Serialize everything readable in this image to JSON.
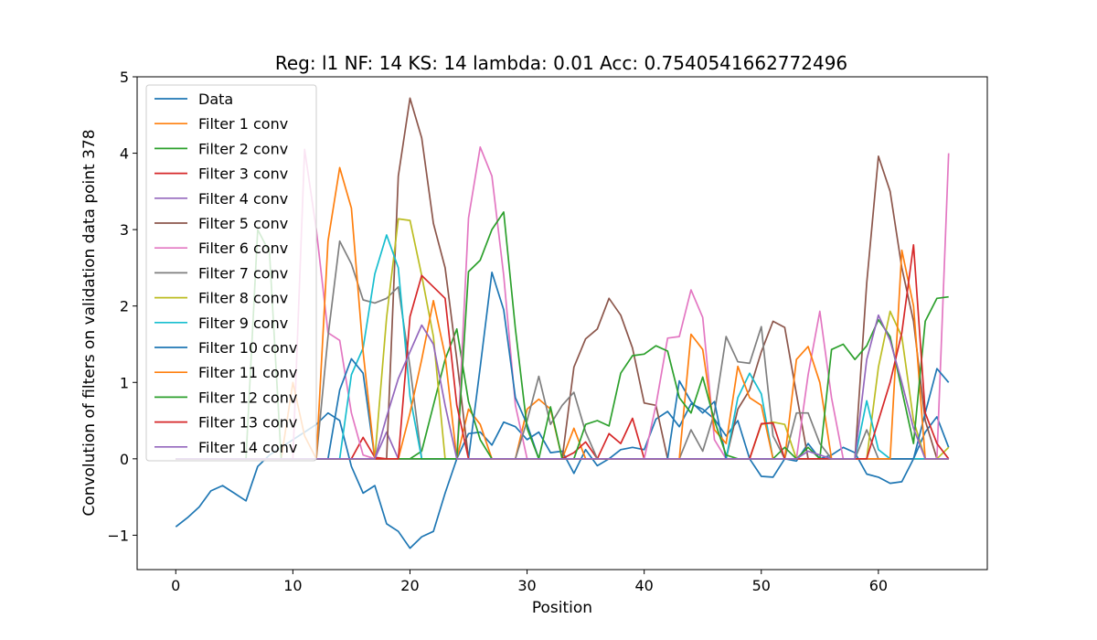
{
  "chart_data": {
    "type": "line",
    "title": "Reg: l1  NF: 14  KS: 14  lambda: 0.01 Acc: 0.7540541662772496",
    "xlabel": "Position",
    "ylabel": "Convolution of filters on validation data point 378",
    "xlim": [
      -3.3,
      69.3
    ],
    "ylim": [
      -1.45,
      5
    ],
    "xticks": [
      0,
      10,
      20,
      30,
      40,
      50,
      60
    ],
    "yticks": [
      -1,
      0,
      1,
      2,
      3,
      4,
      5
    ],
    "grid": false,
    "legend_position": "top-left",
    "series": [
      {
        "name": "Data",
        "color": "#1f77b4",
        "values": [
          -0.89,
          -0.77,
          -0.63,
          -0.42,
          -0.35,
          -0.45,
          -0.55,
          -0.1,
          0.05,
          0.15,
          0.25,
          0.35,
          0.45,
          0.6,
          0.5,
          -0.1,
          -0.45,
          -0.35,
          -0.85,
          -0.95,
          -1.17,
          -1.02,
          -0.95,
          -0.45,
          0.0,
          0.33,
          0.35,
          0.18,
          0.48,
          0.42,
          0.25,
          0.35,
          0.08,
          0.1,
          -0.19,
          0.12,
          -0.09,
          0.0,
          0.12,
          0.15,
          0.12,
          0.52,
          0.62,
          0.42,
          0.72,
          0.65,
          0.52,
          0.3,
          0.5,
          0.0,
          -0.23,
          -0.24,
          0.0,
          -0.03,
          0.2,
          0.0,
          0.05,
          0.15,
          0.08,
          -0.2,
          -0.24,
          -0.32,
          -0.3,
          0.0,
          0.35,
          0.55,
          0.15
        ]
      },
      {
        "name": "Filter 1 conv",
        "color": "#ff7f0e",
        "values": [
          0,
          0,
          0,
          0,
          0,
          0,
          0,
          0,
          0,
          0,
          0,
          0,
          0,
          0,
          0,
          0,
          0,
          0,
          0,
          0,
          0,
          0,
          0,
          0,
          0,
          0.65,
          0.45,
          0,
          0,
          0,
          0.65,
          0.78,
          0.65,
          0,
          0.4,
          0,
          0,
          0,
          0,
          0,
          0,
          0,
          0,
          0,
          0,
          0,
          0,
          0,
          0,
          0,
          0,
          0,
          0,
          0,
          0,
          0,
          0,
          0,
          0,
          0,
          0,
          0,
          0,
          0,
          0,
          0,
          0
        ]
      },
      {
        "name": "Filter 2 conv",
        "color": "#2ca02c",
        "values": [
          0,
          0,
          0,
          0,
          0,
          0,
          0,
          0,
          0,
          0,
          0,
          0,
          0,
          0,
          0,
          0,
          0,
          0,
          0,
          0,
          0,
          0.1,
          0.7,
          1.3,
          1.7,
          0.75,
          0.25,
          0,
          0,
          0,
          0,
          0,
          0,
          0,
          0,
          0,
          0,
          0,
          0,
          0,
          0,
          0,
          0,
          0,
          0,
          0,
          0,
          0,
          0,
          0,
          0,
          0,
          0,
          0,
          0,
          0,
          0,
          0,
          0,
          0,
          0,
          0,
          0,
          0,
          0,
          0,
          0
        ]
      },
      {
        "name": "Filter 3 conv",
        "color": "#d62728",
        "values": [
          0,
          0,
          0,
          0,
          0,
          0,
          0,
          0,
          0,
          0,
          0,
          0,
          0,
          0,
          0,
          0,
          0.28,
          0.02,
          0,
          0,
          0,
          0,
          0,
          0,
          0,
          0,
          0,
          0,
          0,
          0,
          0,
          0,
          0,
          0,
          0.08,
          0.22,
          0,
          0.33,
          0.2,
          0.53,
          0,
          0,
          0,
          0,
          0,
          0,
          0,
          0,
          0,
          0,
          0,
          0,
          0,
          0,
          0,
          0,
          0,
          0,
          0,
          0,
          0,
          0,
          0,
          0,
          0,
          0,
          0
        ]
      },
      {
        "name": "Filter 4 conv",
        "color": "#9467bd",
        "values": [
          0,
          0,
          0,
          0,
          0,
          0,
          0,
          0,
          0,
          0,
          0,
          0,
          0,
          0,
          0,
          0,
          0,
          0,
          0.35,
          0,
          0,
          0,
          0,
          0,
          0,
          0,
          0,
          0,
          0,
          0,
          0,
          0,
          0,
          0,
          0,
          0,
          0,
          0,
          0,
          0,
          0,
          0,
          0,
          0,
          0,
          0,
          0,
          0,
          0,
          0,
          0,
          0,
          0,
          0,
          0,
          0,
          0,
          0,
          0,
          0,
          0,
          0,
          0,
          0,
          0,
          0,
          0
        ]
      },
      {
        "name": "Filter 5 conv",
        "color": "#8c564b",
        "values": [
          0,
          0,
          0,
          0,
          0,
          0,
          0,
          0,
          0,
          0,
          0,
          0,
          0,
          0,
          0,
          0,
          0,
          0,
          0,
          3.7,
          4.72,
          4.2,
          3.08,
          2.5,
          1.3,
          0,
          0,
          0,
          0,
          0,
          0,
          0,
          0,
          0,
          1.2,
          1.57,
          1.7,
          2.1,
          1.88,
          1.45,
          0.73,
          0.7,
          0,
          0,
          0,
          0,
          0,
          0,
          0.65,
          0.9,
          1.4,
          1.8,
          1.72,
          0.85,
          0,
          0,
          0,
          0,
          0,
          2.3,
          3.96,
          3.5,
          2.5,
          1.8,
          0.5,
          0,
          0
        ]
      },
      {
        "name": "Filter 6 conv",
        "color": "#e377c2",
        "values": [
          0,
          0,
          0,
          0,
          0,
          0,
          0,
          0,
          0,
          0,
          0,
          4.05,
          3.0,
          1.65,
          1.55,
          0.6,
          0.05,
          0,
          0,
          0,
          0,
          0,
          0,
          0,
          0,
          3.15,
          4.08,
          3.7,
          2.4,
          0.7,
          0,
          0,
          0,
          0,
          0,
          0,
          0,
          0,
          0,
          0,
          0,
          0.7,
          1.58,
          1.6,
          2.21,
          1.85,
          0.25,
          0,
          0,
          0,
          0,
          0,
          0,
          0,
          1.1,
          1.93,
          0.8,
          0,
          0,
          0,
          0,
          0,
          0,
          0,
          0,
          0,
          4.0
        ]
      },
      {
        "name": "Filter 7 conv",
        "color": "#7f7f7f",
        "values": [
          0,
          0,
          0,
          0,
          0,
          0,
          0,
          0,
          0,
          0,
          0,
          0,
          0,
          1.6,
          2.85,
          2.55,
          2.08,
          2.04,
          2.1,
          2.25,
          1.2,
          0,
          0,
          0,
          0,
          0,
          0,
          0,
          0,
          0,
          0.5,
          1.08,
          0.45,
          0.7,
          0.87,
          0.35,
          0,
          0,
          0,
          0,
          0,
          0,
          0,
          0,
          0.38,
          0.1,
          0.6,
          1.6,
          1.27,
          1.25,
          1.73,
          0.3,
          0,
          0.6,
          0.6,
          0.2,
          0,
          0,
          0,
          0.38,
          0,
          0,
          0,
          0,
          0,
          0,
          0
        ]
      },
      {
        "name": "Filter 8 conv",
        "color": "#bcbd22",
        "values": [
          0,
          0,
          0,
          0,
          0,
          0,
          0,
          0,
          0,
          0,
          0,
          0,
          0,
          0,
          0,
          0,
          0,
          0,
          1.85,
          3.14,
          3.12,
          2.4,
          1.6,
          0,
          0,
          0,
          0,
          0,
          0,
          0,
          0,
          0,
          0,
          0,
          0,
          0,
          0,
          0,
          0,
          0,
          0,
          0,
          0,
          0,
          0,
          0,
          0,
          0,
          0,
          0,
          0.45,
          0.48,
          0.45,
          0,
          0,
          0,
          0,
          0,
          0,
          0,
          1.2,
          1.93,
          1.6,
          0.5,
          0,
          0,
          0.15
        ]
      },
      {
        "name": "Filter 9 conv",
        "color": "#17becf",
        "values": [
          0,
          0,
          0,
          0,
          0,
          0,
          0,
          0,
          0,
          0,
          0,
          0,
          0,
          0,
          0,
          1.1,
          1.45,
          2.42,
          2.93,
          2.5,
          0.82,
          0,
          0,
          0,
          0,
          0,
          0,
          0,
          0,
          0,
          0,
          0,
          0,
          0,
          0,
          0,
          0,
          0,
          0,
          0,
          0,
          0,
          0,
          0,
          0,
          0,
          0,
          0,
          0.8,
          1.12,
          0.85,
          0,
          0,
          0,
          0,
          0,
          0,
          0,
          0,
          0.76,
          0.12,
          0,
          0,
          0,
          0,
          0,
          0
        ]
      },
      {
        "name": "Filter 10 conv",
        "color": "#1f77b4",
        "values": [
          0,
          0,
          0,
          0,
          0,
          0,
          0,
          0,
          0,
          0,
          0,
          0,
          0,
          0,
          0.9,
          1.31,
          1.12,
          0,
          0,
          0,
          0,
          0,
          0,
          0,
          0,
          0,
          1.2,
          2.44,
          1.95,
          0.8,
          0.45,
          0,
          0,
          0,
          0,
          0,
          0,
          0,
          0,
          0,
          0,
          0,
          0,
          1.02,
          0.75,
          0.6,
          0.75,
          0,
          0,
          0,
          0,
          0,
          0,
          0,
          0,
          0,
          0,
          0,
          0,
          0,
          0,
          0,
          0,
          0,
          0.6,
          1.18,
          1.0
        ]
      },
      {
        "name": "Filter 11 conv",
        "color": "#ff7f0e",
        "values": [
          0,
          0,
          0,
          0,
          0,
          0,
          0,
          0,
          0,
          0,
          1.0,
          0.3,
          0,
          2.85,
          3.81,
          3.28,
          1.4,
          0,
          0,
          0,
          0.6,
          1.3,
          2.07,
          1.35,
          0,
          0,
          0,
          0,
          0,
          0,
          0,
          0,
          0,
          0,
          0,
          0,
          0,
          0,
          0,
          0,
          0,
          0,
          0,
          0,
          1.63,
          1.43,
          0.38,
          0.2,
          1.21,
          0.8,
          0.7,
          0,
          0,
          1.3,
          1.47,
          1.0,
          0,
          0,
          0,
          0,
          0,
          0,
          2.73,
          2.0,
          0,
          0,
          0
        ]
      },
      {
        "name": "Filter 12 conv",
        "color": "#2ca02c",
        "values": [
          0,
          0,
          0,
          0,
          0,
          0,
          0,
          3.0,
          2.7,
          0,
          0,
          0,
          0,
          0,
          0,
          0,
          0,
          0,
          0,
          0,
          0,
          0,
          0,
          0,
          0,
          2.45,
          2.6,
          3.0,
          3.23,
          1.7,
          0.4,
          0,
          0.68,
          0,
          0,
          0.45,
          0.5,
          0.43,
          1.12,
          1.35,
          1.37,
          1.48,
          1.41,
          0.8,
          0.6,
          1.07,
          0.5,
          0.05,
          0,
          0,
          0,
          0,
          0.15,
          0,
          0.15,
          0,
          1.43,
          1.5,
          1.3,
          1.48,
          1.82,
          1.6,
          0.9,
          0.2,
          1.8,
          2.1,
          2.12
        ]
      },
      {
        "name": "Filter 13 conv",
        "color": "#d62728",
        "values": [
          0,
          0,
          0,
          0,
          0,
          0,
          0,
          0,
          0,
          0,
          0,
          0,
          0,
          0,
          0,
          0,
          0,
          0,
          0,
          0,
          1.86,
          2.4,
          2.25,
          2.1,
          0.7,
          0,
          0,
          0,
          0,
          0,
          0,
          0,
          0,
          0,
          0,
          0,
          0,
          0,
          0,
          0,
          0,
          0,
          0,
          0,
          0,
          0,
          0,
          0,
          0,
          0,
          0.46,
          0.47,
          0,
          0,
          0,
          0,
          0,
          0,
          0,
          0,
          0.5,
          1.0,
          1.65,
          2.8,
          0.6,
          0.2,
          0
        ]
      },
      {
        "name": "Filter 14 conv",
        "color": "#9467bd",
        "values": [
          0,
          0,
          0,
          0,
          0,
          0,
          0,
          0,
          0,
          0,
          0,
          0,
          0,
          0,
          0,
          0,
          0,
          0,
          0.55,
          1.05,
          1.4,
          1.75,
          1.5,
          0.7,
          0,
          0,
          0,
          0,
          0,
          0,
          0,
          0,
          0,
          0,
          0,
          0,
          0,
          0,
          0,
          0,
          0,
          0,
          0,
          0,
          0,
          0,
          0,
          0,
          0,
          0,
          0,
          0,
          0,
          0,
          0.1,
          0.05,
          0,
          0,
          0,
          1.3,
          1.88,
          1.55,
          1.0,
          0.4,
          0,
          0,
          0
        ]
      }
    ]
  }
}
